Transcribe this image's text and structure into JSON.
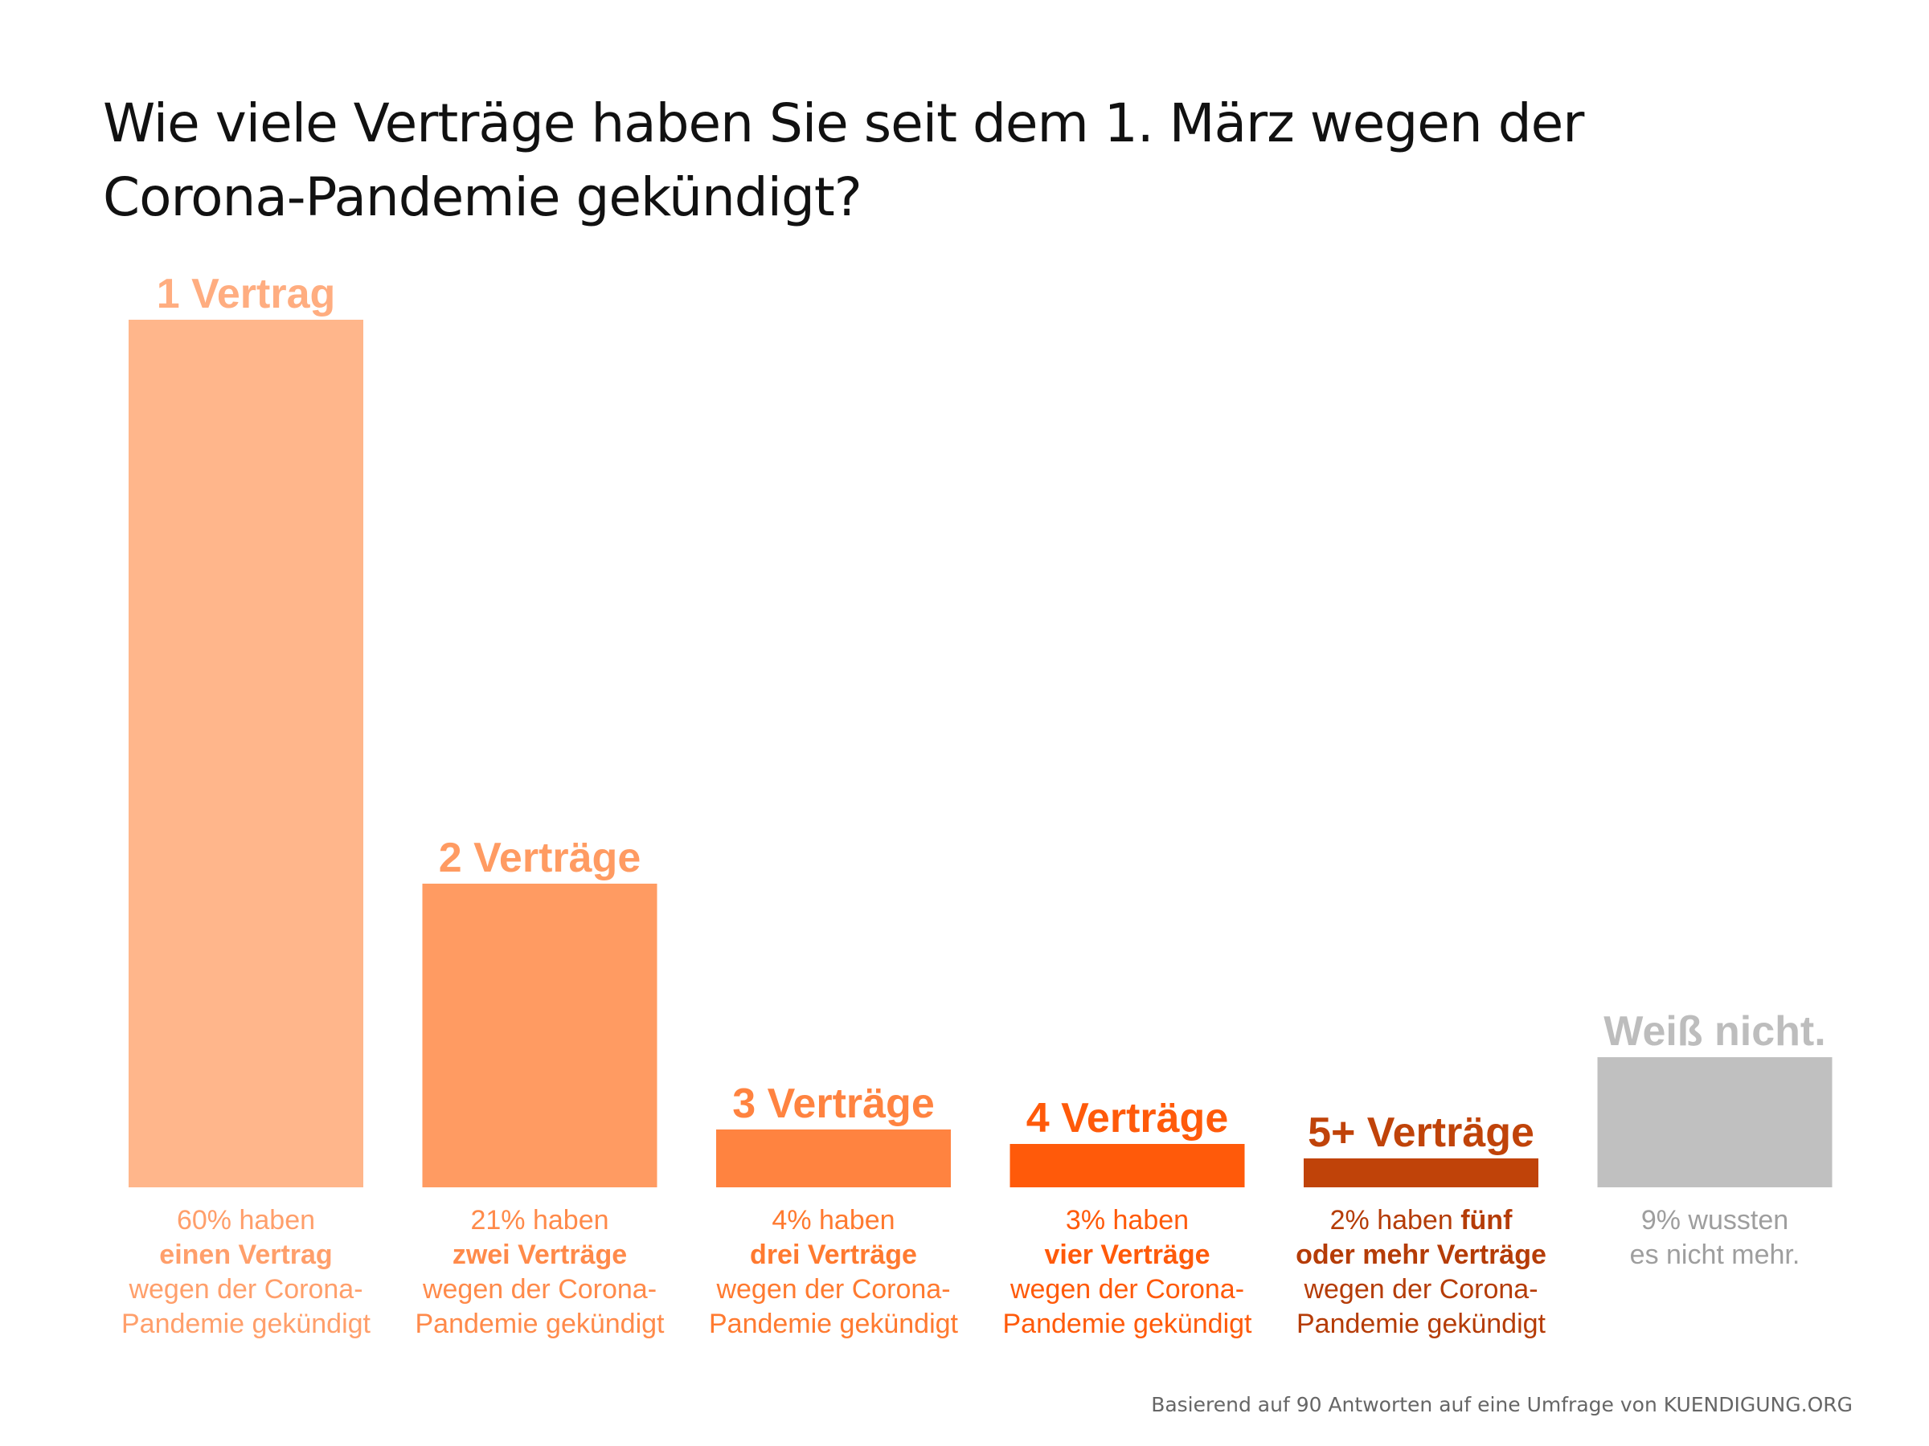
{
  "chart_data": {
    "type": "bar",
    "title": [
      "Wie viele Verträge haben Sie seit dem 1. März wegen der",
      "Corona-Pandemie gekündigt?"
    ],
    "categories": [
      "1 Vertrag",
      "2 Verträge",
      "3 Verträge",
      "4 Verträge",
      "5+ Verträge",
      "Weiß nicht."
    ],
    "values": [
      60,
      21,
      4,
      3,
      2,
      9
    ],
    "unit": "%",
    "colors": [
      "#ffb68b",
      "#ff9b62",
      "#ff8340",
      "#ff5a0a",
      "#c04309",
      "#c0c0c0"
    ],
    "descriptions": [
      [
        {
          "text": "60% haben"
        },
        {
          "text": "einen Vertrag",
          "bold": true
        },
        {
          "text": "wegen der Corona-"
        },
        {
          "text": "Pandemie gekündigt"
        }
      ],
      [
        {
          "text": "21% haben"
        },
        {
          "text": "zwei Verträge",
          "bold": true
        },
        {
          "text": "wegen der Corona-"
        },
        {
          "text": "Pandemie gekündigt"
        }
      ],
      [
        {
          "text": "4% haben"
        },
        {
          "text": "drei Verträge",
          "bold": true
        },
        {
          "text": "wegen der Corona-"
        },
        {
          "text": "Pandemie gekündigt"
        }
      ],
      [
        {
          "text": "3% haben"
        },
        {
          "text": "vier Verträge",
          "bold": true
        },
        {
          "text": "wegen der Corona-"
        },
        {
          "text": "Pandemie gekündigt"
        }
      ],
      [
        {
          "text": "2% haben ",
          "inline": true
        },
        {
          "text": "fünf",
          "bold": true
        },
        {
          "text": "oder mehr Verträge",
          "bold": true
        },
        {
          "text": "wegen der Corona-"
        },
        {
          "text": "Pandemie gekündigt"
        }
      ],
      [
        {
          "text": "9% wussten"
        },
        {
          "text": "es nicht mehr."
        }
      ]
    ],
    "grid": false,
    "legend": "none"
  },
  "footer": {
    "source": "Basierend auf 90 Antworten auf eine Umfrage von KUENDIGUNG.ORG"
  }
}
